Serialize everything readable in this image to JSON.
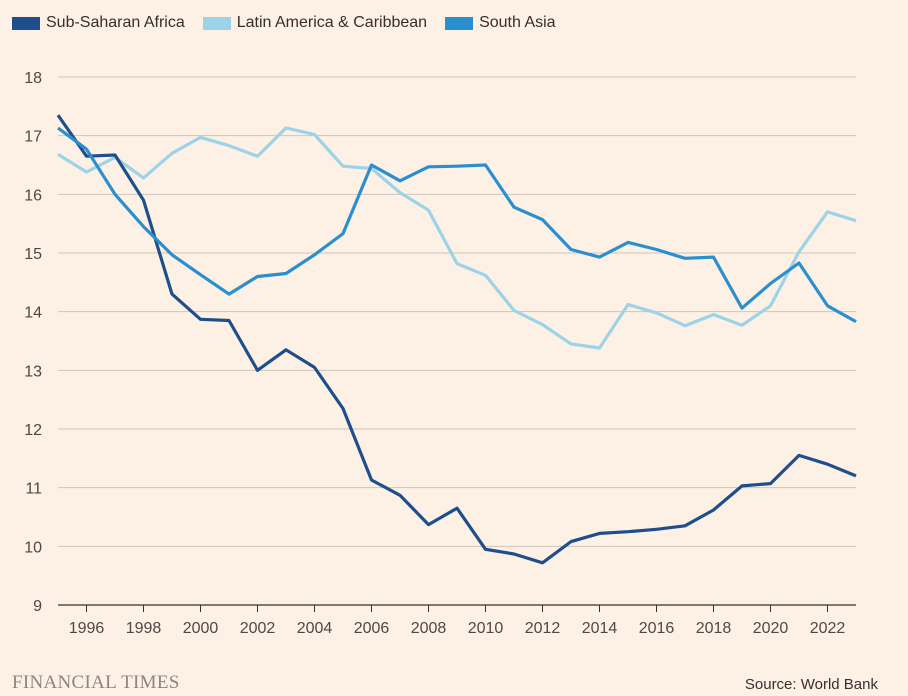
{
  "legend": [
    {
      "name": "Sub-Saharan Africa",
      "color": "#1e4f8c"
    },
    {
      "name": "Latin America & Caribbean",
      "color": "#9dd3e8"
    },
    {
      "name": "South Asia",
      "color": "#2a8fcf"
    }
  ],
  "footer": {
    "brand": "FINANCIAL TIMES",
    "source": "Source: World Bank"
  },
  "chart_data": {
    "type": "line",
    "xlabel": "",
    "ylabel": "",
    "xlim": [
      1995,
      2023
    ],
    "ylim": [
      9,
      18
    ],
    "y_ticks": [
      9,
      10,
      11,
      12,
      13,
      14,
      15,
      16,
      17,
      18
    ],
    "x_ticks": [
      1996,
      1998,
      2000,
      2002,
      2004,
      2006,
      2008,
      2010,
      2012,
      2014,
      2016,
      2018,
      2020,
      2022
    ],
    "grid": "horizontal",
    "legend_position": "top-left",
    "x": [
      1995,
      1996,
      1997,
      1998,
      1999,
      2000,
      2001,
      2002,
      2003,
      2004,
      2005,
      2006,
      2007,
      2008,
      2009,
      2010,
      2011,
      2012,
      2013,
      2014,
      2015,
      2016,
      2017,
      2018,
      2019,
      2020,
      2021,
      2022,
      2023
    ],
    "series": [
      {
        "name": "Sub-Saharan Africa",
        "color": "#1e4f8c",
        "values": [
          17.35,
          16.65,
          16.67,
          15.9,
          14.3,
          13.87,
          13.85,
          13.0,
          13.35,
          13.05,
          12.35,
          11.13,
          10.87,
          10.37,
          10.65,
          9.95,
          9.87,
          9.72,
          10.08,
          10.22,
          10.25,
          10.29,
          10.35,
          10.62,
          11.03,
          11.07,
          11.55,
          11.4,
          11.2
        ]
      },
      {
        "name": "Latin America & Caribbean",
        "color": "#9dd3e8",
        "values": [
          16.68,
          16.38,
          16.63,
          16.28,
          16.7,
          16.97,
          16.83,
          16.65,
          17.13,
          17.02,
          16.48,
          16.44,
          16.03,
          15.73,
          14.82,
          14.62,
          14.02,
          13.78,
          13.45,
          13.38,
          14.12,
          13.98,
          13.76,
          13.95,
          13.77,
          14.1,
          15.02,
          15.7,
          15.55
        ]
      },
      {
        "name": "South Asia",
        "color": "#2a8fcf",
        "values": [
          17.13,
          16.77,
          16.0,
          15.45,
          14.97,
          14.63,
          14.3,
          14.6,
          14.65,
          14.97,
          15.33,
          16.5,
          16.23,
          16.47,
          16.48,
          16.5,
          15.78,
          15.57,
          15.06,
          14.93,
          15.18,
          15.06,
          14.91,
          14.93,
          14.06,
          14.48,
          14.83,
          14.1,
          13.83
        ]
      }
    ]
  }
}
